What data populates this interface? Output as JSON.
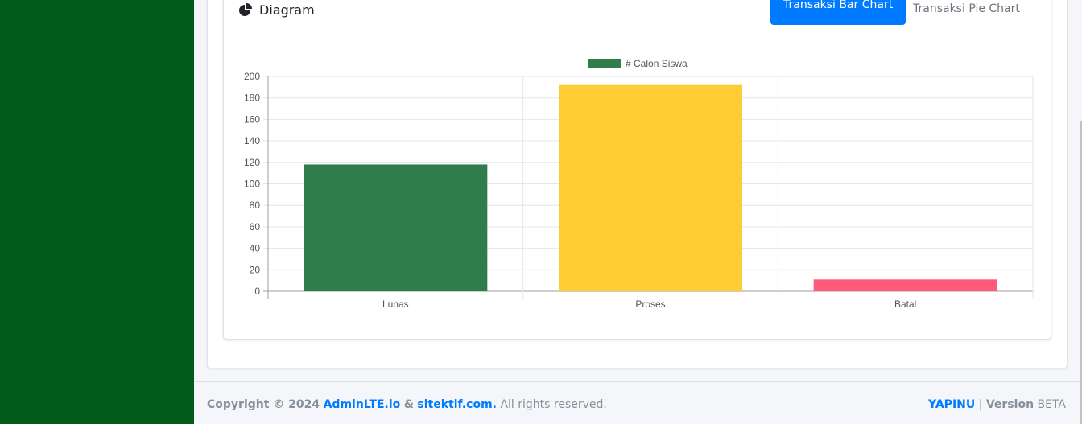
{
  "card": {
    "title": "Diagram",
    "tabs": [
      {
        "label": "Transaksi Bar Chart",
        "active": true
      },
      {
        "label": "Transaksi Pie Chart",
        "active": false
      }
    ]
  },
  "chart_data": {
    "type": "bar",
    "categories": [
      "Lunas",
      "Proses",
      "Batal"
    ],
    "series": [
      {
        "name": "# Calon Siswa",
        "values": [
          118,
          192,
          11
        ]
      }
    ],
    "bar_colors": [
      "#2e7d4a",
      "#ffcd33",
      "#ff5a7a"
    ],
    "legend_color": "#2e7d4a",
    "ylim": [
      0,
      200
    ],
    "yticks": [
      0,
      20,
      40,
      60,
      80,
      100,
      120,
      140,
      160,
      180,
      200
    ],
    "grid": true,
    "legend": "top-center"
  },
  "footer": {
    "copyright": "Copyright © 2024",
    "link1": "AdminLTE.io",
    "amp": "&",
    "link2": "sitektif.com.",
    "rights": "All rights reserved.",
    "brand": "YAPINU",
    "separator": "|",
    "version_label": "Version",
    "version_value": "BETA"
  }
}
